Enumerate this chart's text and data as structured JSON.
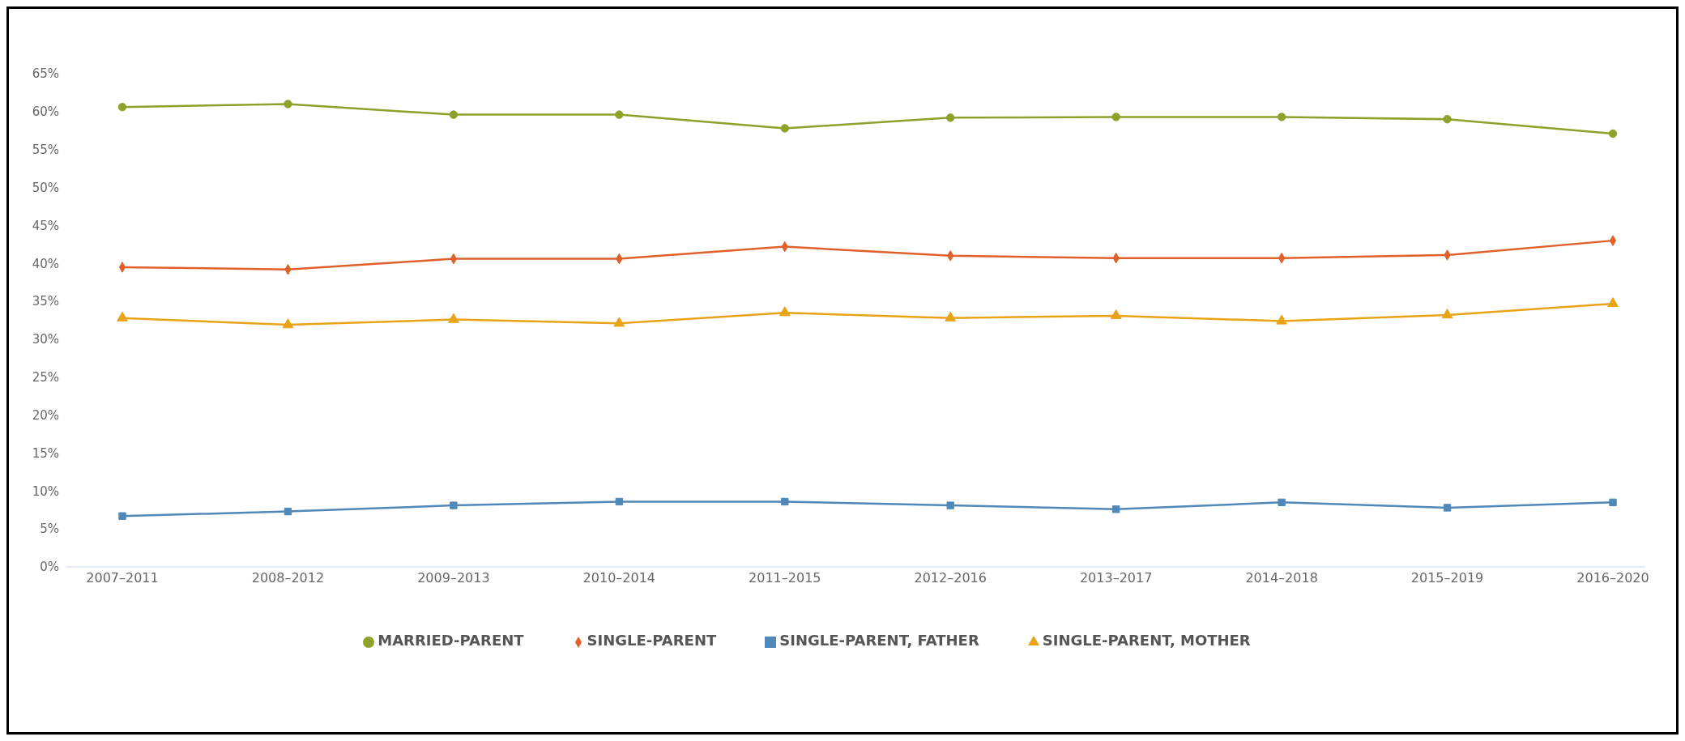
{
  "chart_data": {
    "type": "line",
    "categories": [
      "2007–2011",
      "2008–2012",
      "2009–2013",
      "2010–2014",
      "2011–2015",
      "2012–2016",
      "2013–2017",
      "2014–2018",
      "2015–2019",
      "2016–2020"
    ],
    "series": [
      {
        "name": "MARRIED-PARENT",
        "color": "#8fa12a",
        "marker": "circle",
        "values": [
          60.6,
          61.0,
          59.6,
          59.6,
          57.8,
          59.2,
          59.3,
          59.3,
          59.0,
          57.1
        ]
      },
      {
        "name": "SINGLE-PARENT",
        "color": "#e0602a",
        "marker": "diamond",
        "values": [
          39.5,
          39.2,
          40.6,
          40.6,
          42.2,
          41.0,
          40.7,
          40.7,
          41.1,
          43.0
        ]
      },
      {
        "name": "SINGLE-PARENT, FATHER",
        "color": "#4f88b9",
        "marker": "square",
        "values": [
          6.7,
          7.3,
          8.1,
          8.6,
          8.6,
          8.1,
          7.6,
          8.5,
          7.8,
          8.5
        ]
      },
      {
        "name": "SINGLE-PARENT, MOTHER",
        "color": "#e8a317",
        "marker": "triangle",
        "values": [
          32.8,
          31.9,
          32.6,
          32.1,
          33.5,
          32.8,
          33.1,
          32.4,
          33.2,
          34.7
        ]
      }
    ],
    "ylim": [
      0,
      65
    ],
    "yticks": [
      {
        "value": 0,
        "label": "0%"
      },
      {
        "value": 5,
        "label": "5%"
      },
      {
        "value": 10,
        "label": "10%"
      },
      {
        "value": 15,
        "label": "15%"
      },
      {
        "value": 20,
        "label": "20%"
      },
      {
        "value": 25,
        "label": "25%"
      },
      {
        "value": 30,
        "label": "30%"
      },
      {
        "value": 35,
        "label": "35%"
      },
      {
        "value": 40,
        "label": "40%"
      },
      {
        "value": 45,
        "label": "45%"
      },
      {
        "value": 50,
        "label": "50%"
      },
      {
        "value": 55,
        "label": "55%"
      },
      {
        "value": 60,
        "label": "60%"
      },
      {
        "value": 65,
        "label": "65%"
      }
    ],
    "grid": false,
    "legend": "bottom"
  }
}
